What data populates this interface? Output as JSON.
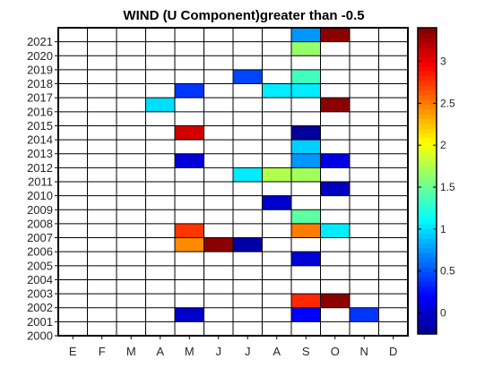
{
  "chart_data": {
    "type": "heatmap",
    "title": "WIND (U Component)greater than -0.5",
    "x_categories": [
      "E",
      "F",
      "M",
      "A",
      "M",
      "J",
      "J",
      "A",
      "S",
      "O",
      "N",
      "D"
    ],
    "y_categories": [
      "2000",
      "2001",
      "2002",
      "2003",
      "2004",
      "2005",
      "2006",
      "2007",
      "2008",
      "2009",
      "2010",
      "2011",
      "2012",
      "2013",
      "2014",
      "2015",
      "2016",
      "2017",
      "2018",
      "2019",
      "2020",
      "2021"
    ],
    "colorbar": {
      "min": -0.25,
      "max": 3.4,
      "ticks": [
        "0",
        "0.5",
        "1",
        "1.5",
        "2",
        "2.5",
        "3"
      ]
    },
    "cells": [
      {
        "x": 4,
        "y": "2001",
        "value": 0.0
      },
      {
        "x": 8,
        "y": "2001",
        "value": 0.2
      },
      {
        "x": 10,
        "y": "2001",
        "value": 0.4
      },
      {
        "x": 8,
        "y": "2002",
        "value": 2.8
      },
      {
        "x": 9,
        "y": "2002",
        "value": 3.35
      },
      {
        "x": 8,
        "y": "2005",
        "value": 0.05
      },
      {
        "x": 4,
        "y": "2006",
        "value": 2.45
      },
      {
        "x": 5,
        "y": "2006",
        "value": 3.35
      },
      {
        "x": 6,
        "y": "2006",
        "value": -0.15
      },
      {
        "x": 4,
        "y": "2007",
        "value": 2.75
      },
      {
        "x": 8,
        "y": "2007",
        "value": 2.5
      },
      {
        "x": 9,
        "y": "2007",
        "value": 1.05
      },
      {
        "x": 8,
        "y": "2008",
        "value": 1.45
      },
      {
        "x": 7,
        "y": "2009",
        "value": 0.0
      },
      {
        "x": 9,
        "y": "2010",
        "value": -0.05
      },
      {
        "x": 6,
        "y": "2011",
        "value": 1.05
      },
      {
        "x": 7,
        "y": "2011",
        "value": 1.75
      },
      {
        "x": 8,
        "y": "2011",
        "value": 1.7
      },
      {
        "x": 4,
        "y": "2012",
        "value": 0.05
      },
      {
        "x": 8,
        "y": "2012",
        "value": 0.75
      },
      {
        "x": 9,
        "y": "2012",
        "value": 0.1
      },
      {
        "x": 8,
        "y": "2013",
        "value": 0.95
      },
      {
        "x": 4,
        "y": "2014",
        "value": 3.1
      },
      {
        "x": 8,
        "y": "2014",
        "value": -0.2
      },
      {
        "x": 9,
        "y": "2016",
        "value": 3.35
      },
      {
        "x": 3,
        "y": "2016",
        "value": 1.0
      },
      {
        "x": 4,
        "y": "2017",
        "value": 0.4
      },
      {
        "x": 7,
        "y": "2017",
        "value": 1.05
      },
      {
        "x": 8,
        "y": "2017",
        "value": 1.05
      },
      {
        "x": 6,
        "y": "2018",
        "value": 0.45
      },
      {
        "x": 8,
        "y": "2018",
        "value": 1.35
      },
      {
        "x": 8,
        "y": "2020",
        "value": 1.65
      },
      {
        "x": 8,
        "y": "2021",
        "value": 0.75
      },
      {
        "x": 9,
        "y": "2021",
        "value": 3.35
      }
    ],
    "grid": true
  },
  "colors": {
    "jet": [
      "#00008F",
      "#0000FF",
      "#007FFF",
      "#00FFFF",
      "#7FFF7F",
      "#FFFF00",
      "#FF7F00",
      "#FF0000",
      "#7F0000"
    ],
    "grid": "#000000",
    "empty_cell": "#ffffff"
  }
}
